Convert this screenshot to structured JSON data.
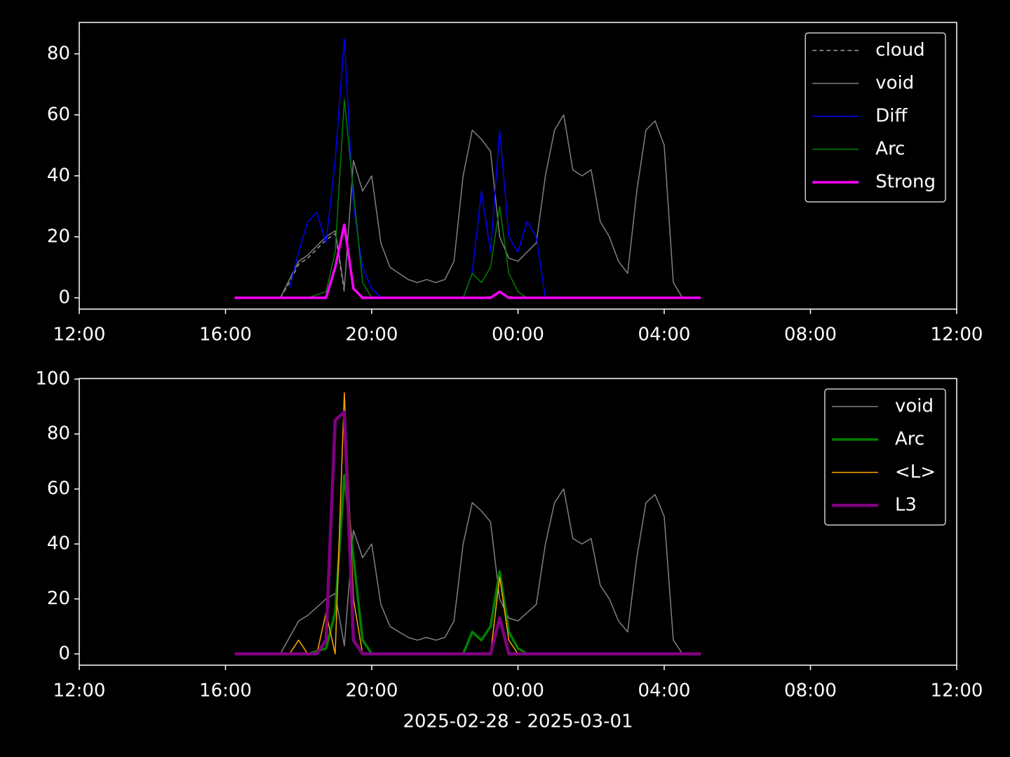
{
  "chart_data": [
    {
      "type": "line",
      "x": [
        16.25,
        16.5,
        16.75,
        17,
        17.25,
        17.5,
        17.75,
        18,
        18.25,
        18.5,
        18.75,
        19,
        19.25,
        19.5,
        19.75,
        20,
        20.25,
        20.5,
        20.75,
        21,
        21.25,
        21.5,
        21.75,
        22,
        22.25,
        22.5,
        22.75,
        23,
        23.25,
        23.5,
        23.75,
        24,
        24.25,
        24.5,
        24.75,
        25,
        25.25,
        25.5,
        25.75,
        26,
        26.25,
        26.5,
        26.75,
        27,
        27.25,
        27.5,
        27.75,
        28,
        28.25,
        28.5,
        28.75,
        29
      ],
      "series": [
        {
          "name": "cloud",
          "color": "#999999",
          "dashed": true,
          "linewidth": 1.5,
          "values": [
            null,
            null,
            null,
            null,
            null,
            0,
            5,
            11,
            13,
            16,
            19,
            21,
            2,
            null,
            null,
            null,
            null,
            null,
            null,
            null,
            null,
            null,
            null,
            null,
            null,
            null,
            null,
            null,
            null,
            null,
            null,
            null,
            null,
            null,
            null,
            null,
            null,
            null,
            null,
            null,
            null,
            null,
            null,
            null,
            null,
            null,
            null,
            null,
            null,
            null,
            null,
            null
          ]
        },
        {
          "name": "void",
          "color": "#808080",
          "dashed": false,
          "linewidth": 1.5,
          "values": [
            null,
            null,
            null,
            null,
            null,
            0,
            6,
            12,
            14,
            17,
            20,
            22,
            3,
            45,
            35,
            40,
            18,
            10,
            8,
            6,
            5,
            6,
            5,
            6,
            12,
            40,
            55,
            52,
            48,
            20,
            13,
            12,
            15,
            18,
            40,
            55,
            60,
            42,
            40,
            42,
            25,
            20,
            12,
            8,
            35,
            55,
            58,
            50,
            5,
            0,
            null,
            null
          ]
        },
        {
          "name": "Diff",
          "color": "#0000ff",
          "dashed": false,
          "linewidth": 1.5,
          "values": [
            null,
            null,
            null,
            null,
            null,
            null,
            3,
            15,
            25,
            28,
            18,
            45,
            85,
            30,
            10,
            3,
            0,
            0,
            0,
            0,
            0,
            0,
            0,
            0,
            0,
            0,
            8,
            35,
            15,
            55,
            20,
            15,
            25,
            20,
            0,
            null,
            null,
            null,
            null,
            null,
            null,
            null,
            null,
            null,
            null,
            null,
            null,
            null,
            null,
            null,
            null,
            null
          ]
        },
        {
          "name": "Arc",
          "color": "#008000",
          "dashed": false,
          "linewidth": 1.5,
          "values": [
            null,
            null,
            null,
            null,
            null,
            null,
            null,
            0,
            0,
            1,
            2,
            15,
            65,
            35,
            5,
            0,
            0,
            0,
            0,
            0,
            0,
            0,
            0,
            0,
            0,
            0,
            8,
            5,
            10,
            30,
            8,
            2,
            0,
            0,
            0,
            0,
            0,
            0,
            null,
            null,
            null,
            null,
            null,
            null,
            null,
            null,
            null,
            null,
            null,
            null,
            null,
            null
          ]
        },
        {
          "name": "Strong",
          "color": "#ff00ff",
          "dashed": false,
          "linewidth": 3.5,
          "values": [
            0,
            0,
            0,
            0,
            0,
            0,
            0,
            0,
            0,
            0,
            0,
            10,
            24,
            3,
            0,
            0,
            0,
            0,
            0,
            0,
            0,
            0,
            0,
            0,
            0,
            0,
            0,
            0,
            0,
            2,
            0,
            0,
            0,
            0,
            0,
            0,
            0,
            0,
            0,
            0,
            0,
            0,
            0,
            0,
            0,
            0,
            0,
            0,
            0,
            0,
            0,
            0
          ]
        }
      ],
      "xlim": [
        12,
        36
      ],
      "xticks": [
        {
          "value": 12,
          "label": "12:00"
        },
        {
          "value": 16,
          "label": "16:00"
        },
        {
          "value": 20,
          "label": "20:00"
        },
        {
          "value": 24,
          "label": "00:00"
        },
        {
          "value": 28,
          "label": "04:00"
        },
        {
          "value": 32,
          "label": "08:00"
        },
        {
          "value": 36,
          "label": "12:00"
        }
      ],
      "ylim": [
        -3.7,
        90.3
      ],
      "yticks": [
        0,
        20,
        40,
        60,
        80
      ],
      "legend": "upper right"
    },
    {
      "type": "line",
      "x": [
        16.25,
        16.5,
        16.75,
        17,
        17.25,
        17.5,
        17.75,
        18,
        18.25,
        18.5,
        18.75,
        19,
        19.25,
        19.5,
        19.75,
        20,
        20.25,
        20.5,
        20.75,
        21,
        21.25,
        21.5,
        21.75,
        22,
        22.25,
        22.5,
        22.75,
        23,
        23.25,
        23.5,
        23.75,
        24,
        24.25,
        24.5,
        24.75,
        25,
        25.25,
        25.5,
        25.75,
        26,
        26.25,
        26.5,
        26.75,
        27,
        27.25,
        27.5,
        27.75,
        28,
        28.25,
        28.5,
        28.75,
        29
      ],
      "series": [
        {
          "name": "void",
          "color": "#808080",
          "dashed": false,
          "linewidth": 1.5,
          "values": [
            null,
            null,
            null,
            null,
            null,
            0,
            6,
            12,
            14,
            17,
            20,
            22,
            3,
            45,
            35,
            40,
            18,
            10,
            8,
            6,
            5,
            6,
            5,
            6,
            12,
            40,
            55,
            52,
            48,
            20,
            13,
            12,
            15,
            18,
            40,
            55,
            60,
            42,
            40,
            42,
            25,
            20,
            12,
            8,
            35,
            55,
            58,
            50,
            5,
            0,
            null,
            null
          ]
        },
        {
          "name": "Arc",
          "color": "#008000",
          "dashed": false,
          "linewidth": 3.5,
          "values": [
            null,
            null,
            null,
            null,
            null,
            null,
            null,
            0,
            0,
            1,
            2,
            15,
            65,
            35,
            5,
            0,
            0,
            0,
            0,
            0,
            0,
            0,
            0,
            0,
            0,
            0,
            8,
            5,
            10,
            30,
            8,
            2,
            0,
            0,
            0,
            0,
            0,
            0,
            0,
            0,
            0,
            0,
            null,
            null,
            null,
            null,
            null,
            null,
            null,
            null,
            null,
            null
          ]
        },
        {
          "name": "<L>",
          "color": "#ffa500",
          "dashed": false,
          "linewidth": 1.5,
          "values": [
            0,
            0,
            0,
            0,
            0,
            0,
            0,
            5,
            0,
            0,
            15,
            0,
            95,
            20,
            0,
            0,
            0,
            0,
            0,
            0,
            0,
            0,
            0,
            0,
            0,
            0,
            0,
            0,
            0,
            28,
            5,
            0,
            0,
            0,
            0,
            0,
            0,
            0,
            0,
            0,
            0,
            0,
            0,
            0,
            0,
            0,
            0,
            0,
            0,
            0,
            0,
            0
          ]
        },
        {
          "name": "L3",
          "color": "#800080",
          "dashed": false,
          "linewidth": 4.5,
          "values": [
            0,
            0,
            0,
            0,
            0,
            0,
            0,
            0,
            0,
            0,
            5,
            85,
            88,
            5,
            0,
            0,
            0,
            0,
            0,
            0,
            0,
            0,
            0,
            0,
            0,
            0,
            0,
            0,
            0,
            13,
            0,
            0,
            0,
            0,
            0,
            0,
            0,
            0,
            0,
            0,
            0,
            0,
            0,
            0,
            0,
            0,
            0,
            0,
            0,
            0,
            0,
            0
          ]
        }
      ],
      "xlim": [
        12,
        36
      ],
      "xticks": [
        {
          "value": 12,
          "label": "12:00"
        },
        {
          "value": 16,
          "label": "16:00"
        },
        {
          "value": 20,
          "label": "20:00"
        },
        {
          "value": 24,
          "label": "00:00"
        },
        {
          "value": 28,
          "label": "04:00"
        },
        {
          "value": 32,
          "label": "08:00"
        },
        {
          "value": 36,
          "label": "12:00"
        }
      ],
      "ylim": [
        -4.1,
        100.2
      ],
      "yticks": [
        0,
        20,
        40,
        60,
        80,
        100
      ],
      "xlabel": "2025-02-28 - 2025-03-01",
      "legend": "upper right"
    }
  ]
}
